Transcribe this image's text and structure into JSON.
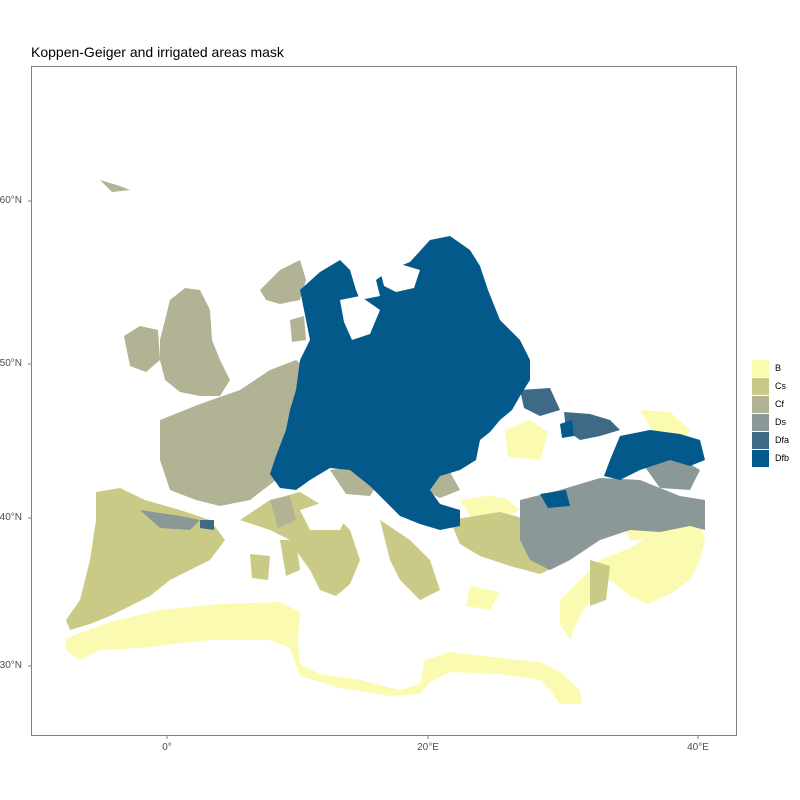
{
  "title": "Koppen-Geiger and irrigated areas mask",
  "y_ticks": [
    {
      "label": "60°N"
    },
    {
      "label": "50°N"
    },
    {
      "label": "40°N"
    },
    {
      "label": "30°N"
    }
  ],
  "x_ticks": [
    {
      "label": "0°"
    },
    {
      "label": "20°E"
    },
    {
      "label": "40°E"
    }
  ],
  "legend": [
    {
      "label": "B",
      "color": "#fafbb0"
    },
    {
      "label": "Cs",
      "color": "#c9ca86"
    },
    {
      "label": "Cf",
      "color": "#b2b294"
    },
    {
      "label": "Ds",
      "color": "#8a9997"
    },
    {
      "label": "Dfa",
      "color": "#3f6a86"
    },
    {
      "label": "Dfb",
      "color": "#04598b"
    }
  ]
}
